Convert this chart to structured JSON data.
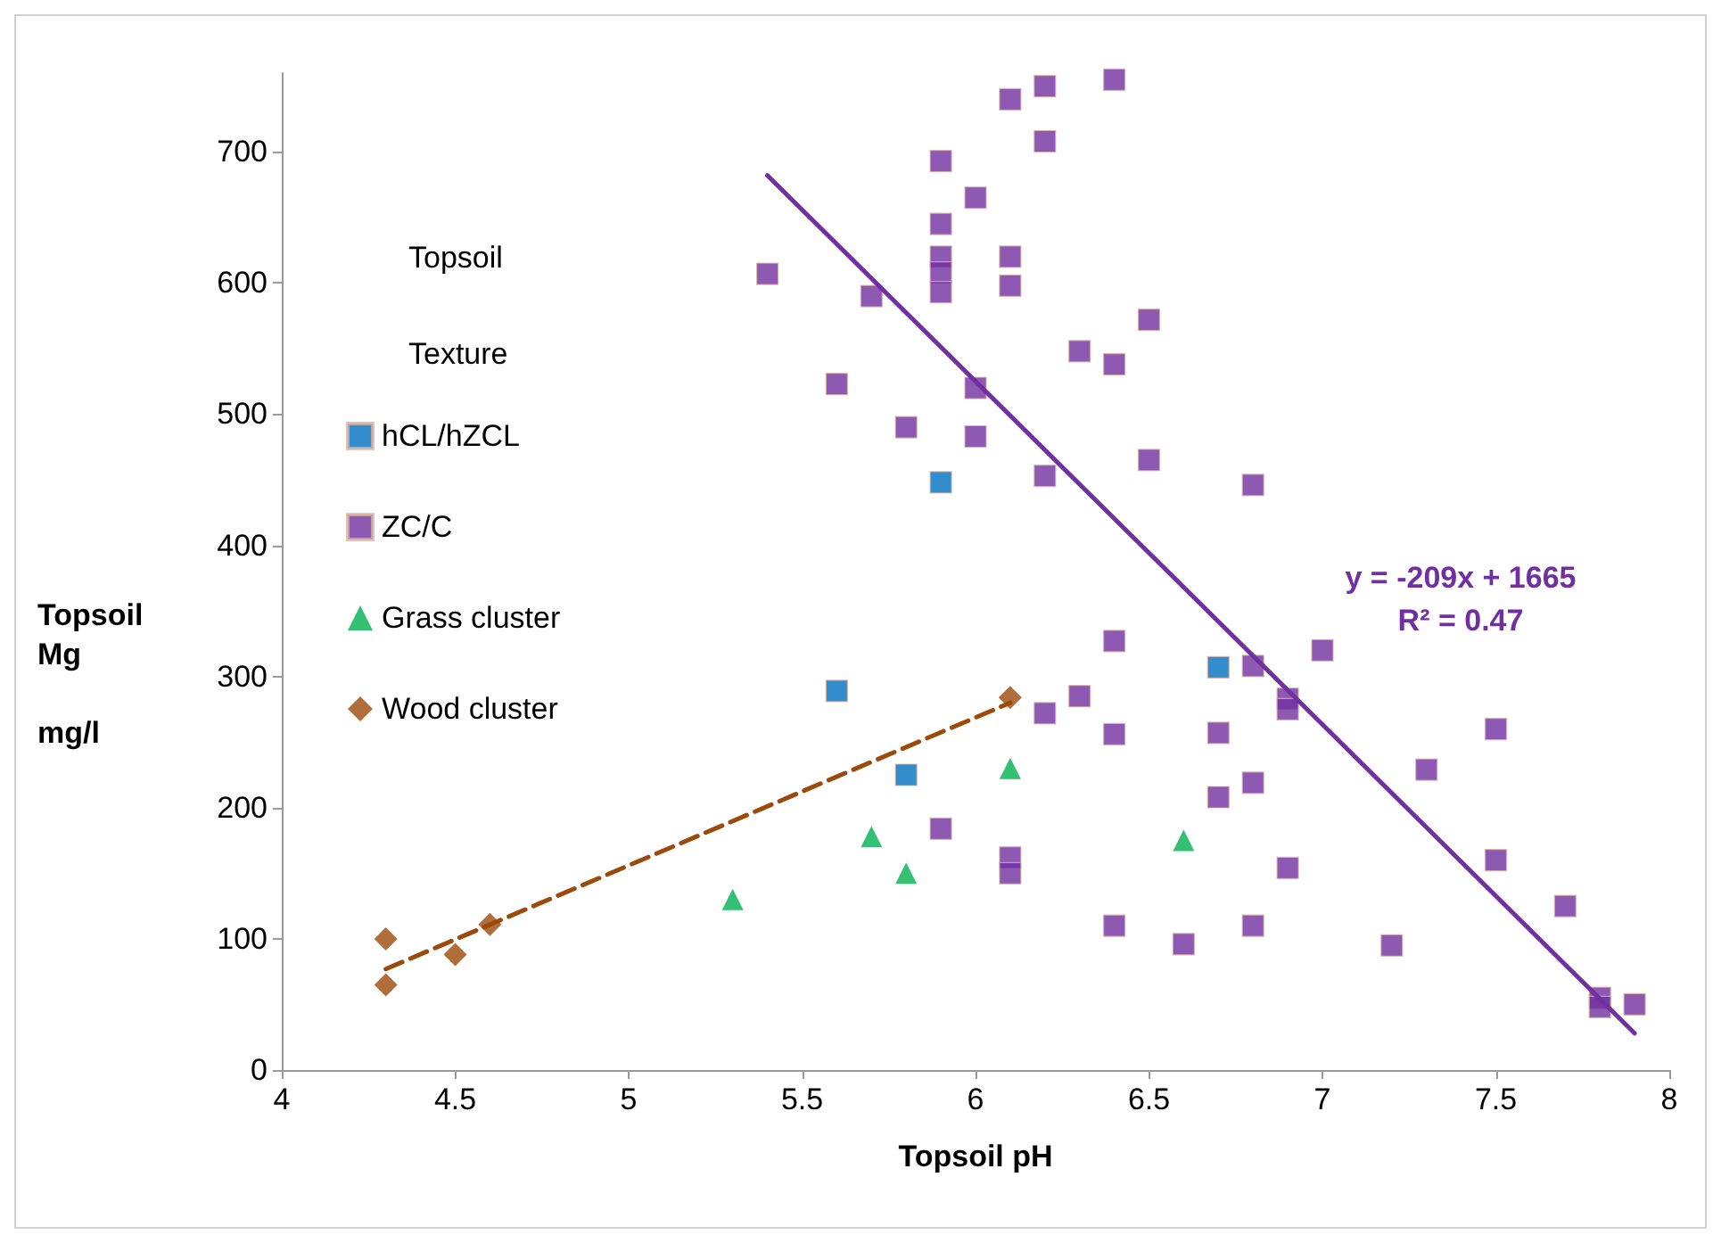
{
  "chart_data": {
    "type": "scatter",
    "xlabel": "Topsoil pH",
    "ylabel": "Topsoil\nMg\n\nmg/l",
    "legend_title": "Topsoil\n\nTexture",
    "xlim": [
      4,
      8
    ],
    "xticks": [
      4,
      4.5,
      5,
      5.5,
      6,
      6.5,
      7,
      7.5,
      8
    ],
    "ylim": [
      0,
      760
    ],
    "yticks": [
      0,
      100,
      200,
      300,
      400,
      500,
      600,
      700
    ],
    "grid": false,
    "legend": "left",
    "annotations": [
      "y = -209x + 1665\nR² = 0.47"
    ],
    "series": [
      {
        "name": "hCL/hZCL",
        "color": "#0070c0",
        "marker": "square",
        "x": [
          5.9,
          5.6,
          5.8,
          6.7
        ],
        "values": [
          448,
          289,
          225,
          307
        ]
      },
      {
        "name": "ZC/C",
        "color": "#7030a0",
        "marker": "square",
        "x": [
          6.4,
          6.2,
          6.1,
          6.2,
          5.9,
          6.0,
          5.9,
          5.9,
          5.9,
          5.9,
          5.4,
          5.7,
          6.1,
          6.1,
          6.5,
          6.3,
          6.4,
          5.6,
          6.0,
          5.8,
          6.0,
          6.2,
          6.5,
          6.8,
          6.4,
          6.3,
          6.2,
          6.4,
          6.7,
          6.8,
          6.9,
          6.9,
          7.0,
          6.8,
          6.7,
          7.3,
          7.5,
          5.9,
          6.1,
          6.1,
          6.9,
          7.5,
          7.7,
          6.4,
          6.6,
          6.8,
          7.2,
          7.8,
          7.8,
          7.9
        ],
        "values": [
          755,
          750,
          740,
          708,
          693,
          665,
          645,
          620,
          608,
          593,
          607,
          590,
          620,
          598,
          572,
          548,
          538,
          523,
          520,
          490,
          483,
          453,
          465,
          446,
          327,
          285,
          272,
          256,
          257,
          308,
          283,
          275,
          320,
          219,
          208,
          229,
          260,
          184,
          162,
          150,
          154,
          160,
          125,
          110,
          96,
          110,
          95,
          55,
          48,
          50
        ]
      },
      {
        "name": "Grass cluster",
        "color": "#00b050",
        "marker": "triangle",
        "x": [
          5.3,
          5.7,
          5.8,
          6.1,
          6.6
        ],
        "values": [
          130,
          178,
          150,
          230,
          175
        ]
      },
      {
        "name": "Wood cluster",
        "color": "#9c4a0c",
        "marker": "diamond",
        "x": [
          4.3,
          4.3,
          4.5,
          4.6,
          6.1
        ],
        "values": [
          100,
          65,
          88,
          111,
          284
        ]
      },
      {
        "type": "line",
        "color": "#7030a0",
        "marker": "none",
        "line_style": "solid",
        "x": [
          5.4,
          7.9
        ],
        "values": [
          682,
          28
        ]
      },
      {
        "type": "line",
        "color": "#9c4a0c",
        "marker": "none",
        "line_style": "dashed",
        "x": [
          4.3,
          6.1
        ],
        "values": [
          77,
          280
        ]
      }
    ]
  }
}
